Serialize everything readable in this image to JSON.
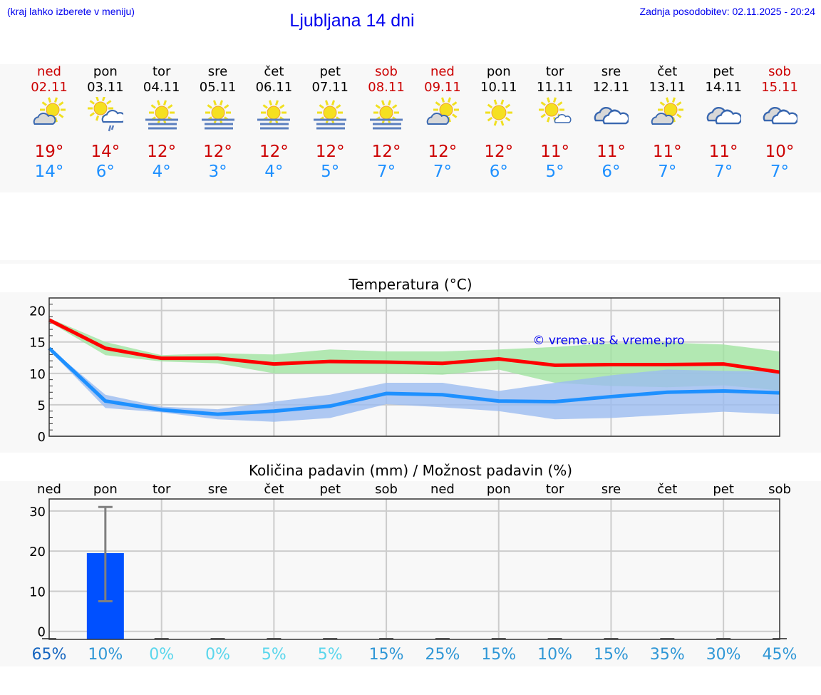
{
  "header": {
    "hint": "(kraj lahko izberete v meniju)",
    "title": "Ljubljana 14 dni",
    "updated": "Zadnja posodobitev: 02.11.2025 - 20:24"
  },
  "colors": {
    "weekend": "#cc0000",
    "max": "#cc0000",
    "min": "#1e90ff",
    "link": "#0000ee",
    "bar": "#0050ff"
  },
  "days": [
    {
      "name": "ned",
      "date": "02.11",
      "weekend": true,
      "icon": "partly-cloudy",
      "max": "19°",
      "min": "14°"
    },
    {
      "name": "pon",
      "date": "03.11",
      "weekend": false,
      "icon": "sun-cloud-rain",
      "max": "14°",
      "min": "6°"
    },
    {
      "name": "tor",
      "date": "04.11",
      "weekend": false,
      "icon": "sun-fog",
      "max": "12°",
      "min": "4°"
    },
    {
      "name": "sre",
      "date": "05.11",
      "weekend": false,
      "icon": "sun-fog",
      "max": "12°",
      "min": "3°"
    },
    {
      "name": "čet",
      "date": "06.11",
      "weekend": false,
      "icon": "sun-fog",
      "max": "12°",
      "min": "4°"
    },
    {
      "name": "pet",
      "date": "07.11",
      "weekend": false,
      "icon": "sun-fog",
      "max": "12°",
      "min": "5°"
    },
    {
      "name": "sob",
      "date": "08.11",
      "weekend": true,
      "icon": "sun-fog",
      "max": "12°",
      "min": "7°"
    },
    {
      "name": "ned",
      "date": "09.11",
      "weekend": true,
      "icon": "partly-cloudy",
      "max": "12°",
      "min": "7°"
    },
    {
      "name": "pon",
      "date": "10.11",
      "weekend": false,
      "icon": "sunny",
      "max": "12°",
      "min": "6°"
    },
    {
      "name": "tor",
      "date": "11.11",
      "weekend": false,
      "icon": "sun-small-cloud",
      "max": "11°",
      "min": "5°"
    },
    {
      "name": "sre",
      "date": "12.11",
      "weekend": false,
      "icon": "cloudy",
      "max": "11°",
      "min": "6°"
    },
    {
      "name": "čet",
      "date": "13.11",
      "weekend": false,
      "icon": "partly-cloudy",
      "max": "11°",
      "min": "7°"
    },
    {
      "name": "pet",
      "date": "14.11",
      "weekend": false,
      "icon": "cloudy",
      "max": "11°",
      "min": "7°"
    },
    {
      "name": "sob",
      "date": "15.11",
      "weekend": true,
      "icon": "cloudy",
      "max": "10°",
      "min": "7°"
    }
  ],
  "chart_data": [
    {
      "type": "line",
      "title": "Temperatura (°C)",
      "watermark": "© vreme.us & vreme.pro",
      "x": [
        "02.11",
        "03.11",
        "04.11",
        "05.11",
        "06.11",
        "07.11",
        "08.11",
        "09.11",
        "10.11",
        "11.11",
        "12.11",
        "13.11",
        "14.11",
        "15.11"
      ],
      "ylim": [
        0,
        22
      ],
      "yticks": [
        0,
        5,
        10,
        15,
        20
      ],
      "grid": true,
      "series": [
        {
          "role": "max",
          "color": "#ff0000",
          "values": [
            18.5,
            14.0,
            12.4,
            12.4,
            11.5,
            11.9,
            11.8,
            11.6,
            12.3,
            11.3,
            11.4,
            11.4,
            11.5,
            10.2
          ]
        },
        {
          "role": "min",
          "color": "#1e90ff",
          "values": [
            14.0,
            5.6,
            4.2,
            3.5,
            4.0,
            4.8,
            6.8,
            6.6,
            5.6,
            5.5,
            6.3,
            7.0,
            7.2,
            6.9
          ]
        }
      ],
      "bands": [
        {
          "role": "max-range",
          "color": "#a0e4a0",
          "upper": [
            18.8,
            15.0,
            12.9,
            13.2,
            13.0,
            13.8,
            13.5,
            13.5,
            13.8,
            14.2,
            14.8,
            14.9,
            14.6,
            13.5
          ],
          "lower": [
            18.2,
            12.9,
            11.9,
            11.6,
            10.0,
            10.0,
            10.0,
            9.8,
            10.6,
            8.5,
            8.0,
            7.8,
            8.1,
            7.3
          ]
        },
        {
          "role": "min-range",
          "color": "#9bbcf0",
          "upper": [
            14.1,
            6.6,
            4.7,
            4.3,
            5.5,
            6.6,
            8.5,
            8.5,
            7.2,
            8.5,
            9.7,
            10.6,
            10.4,
            10.3
          ],
          "lower": [
            13.7,
            4.5,
            3.8,
            2.7,
            2.3,
            2.9,
            5.1,
            4.6,
            4.0,
            2.7,
            2.9,
            3.4,
            3.9,
            3.5
          ]
        }
      ]
    },
    {
      "type": "bar",
      "title": "Količina padavin (mm) / Možnost padavin (%)",
      "categories": [
        "ned",
        "pon",
        "tor",
        "sre",
        "čet",
        "pet",
        "sob",
        "ned",
        "pon",
        "tor",
        "sre",
        "čet",
        "pet",
        "sob"
      ],
      "values": [
        0,
        19.5,
        0,
        0,
        0,
        0,
        0,
        0,
        0,
        0,
        0,
        0,
        0,
        0
      ],
      "error_low": [
        0,
        7.5,
        0,
        0,
        0,
        0,
        0,
        0,
        0,
        0,
        0,
        0,
        0,
        0
      ],
      "error_high": [
        0,
        31,
        0,
        0,
        0,
        0,
        0,
        0,
        0,
        0,
        0,
        0,
        0,
        0
      ],
      "ylim": [
        -2,
        33
      ],
      "yticks": [
        0,
        10,
        20,
        30
      ],
      "grid": true,
      "probability": [
        "65%",
        "10%",
        "0%",
        "0%",
        "5%",
        "5%",
        "15%",
        "25%",
        "15%",
        "10%",
        "15%",
        "35%",
        "30%",
        "45%"
      ],
      "probability_colors": [
        "#1565c0",
        "#2f97d6",
        "#5ad6ec",
        "#5ad6ec",
        "#5ad6ec",
        "#5ad6ec",
        "#2f97d6",
        "#2f97d6",
        "#2f97d6",
        "#2f97d6",
        "#2f97d6",
        "#2f97d6",
        "#2f97d6",
        "#2f97d6"
      ]
    }
  ]
}
